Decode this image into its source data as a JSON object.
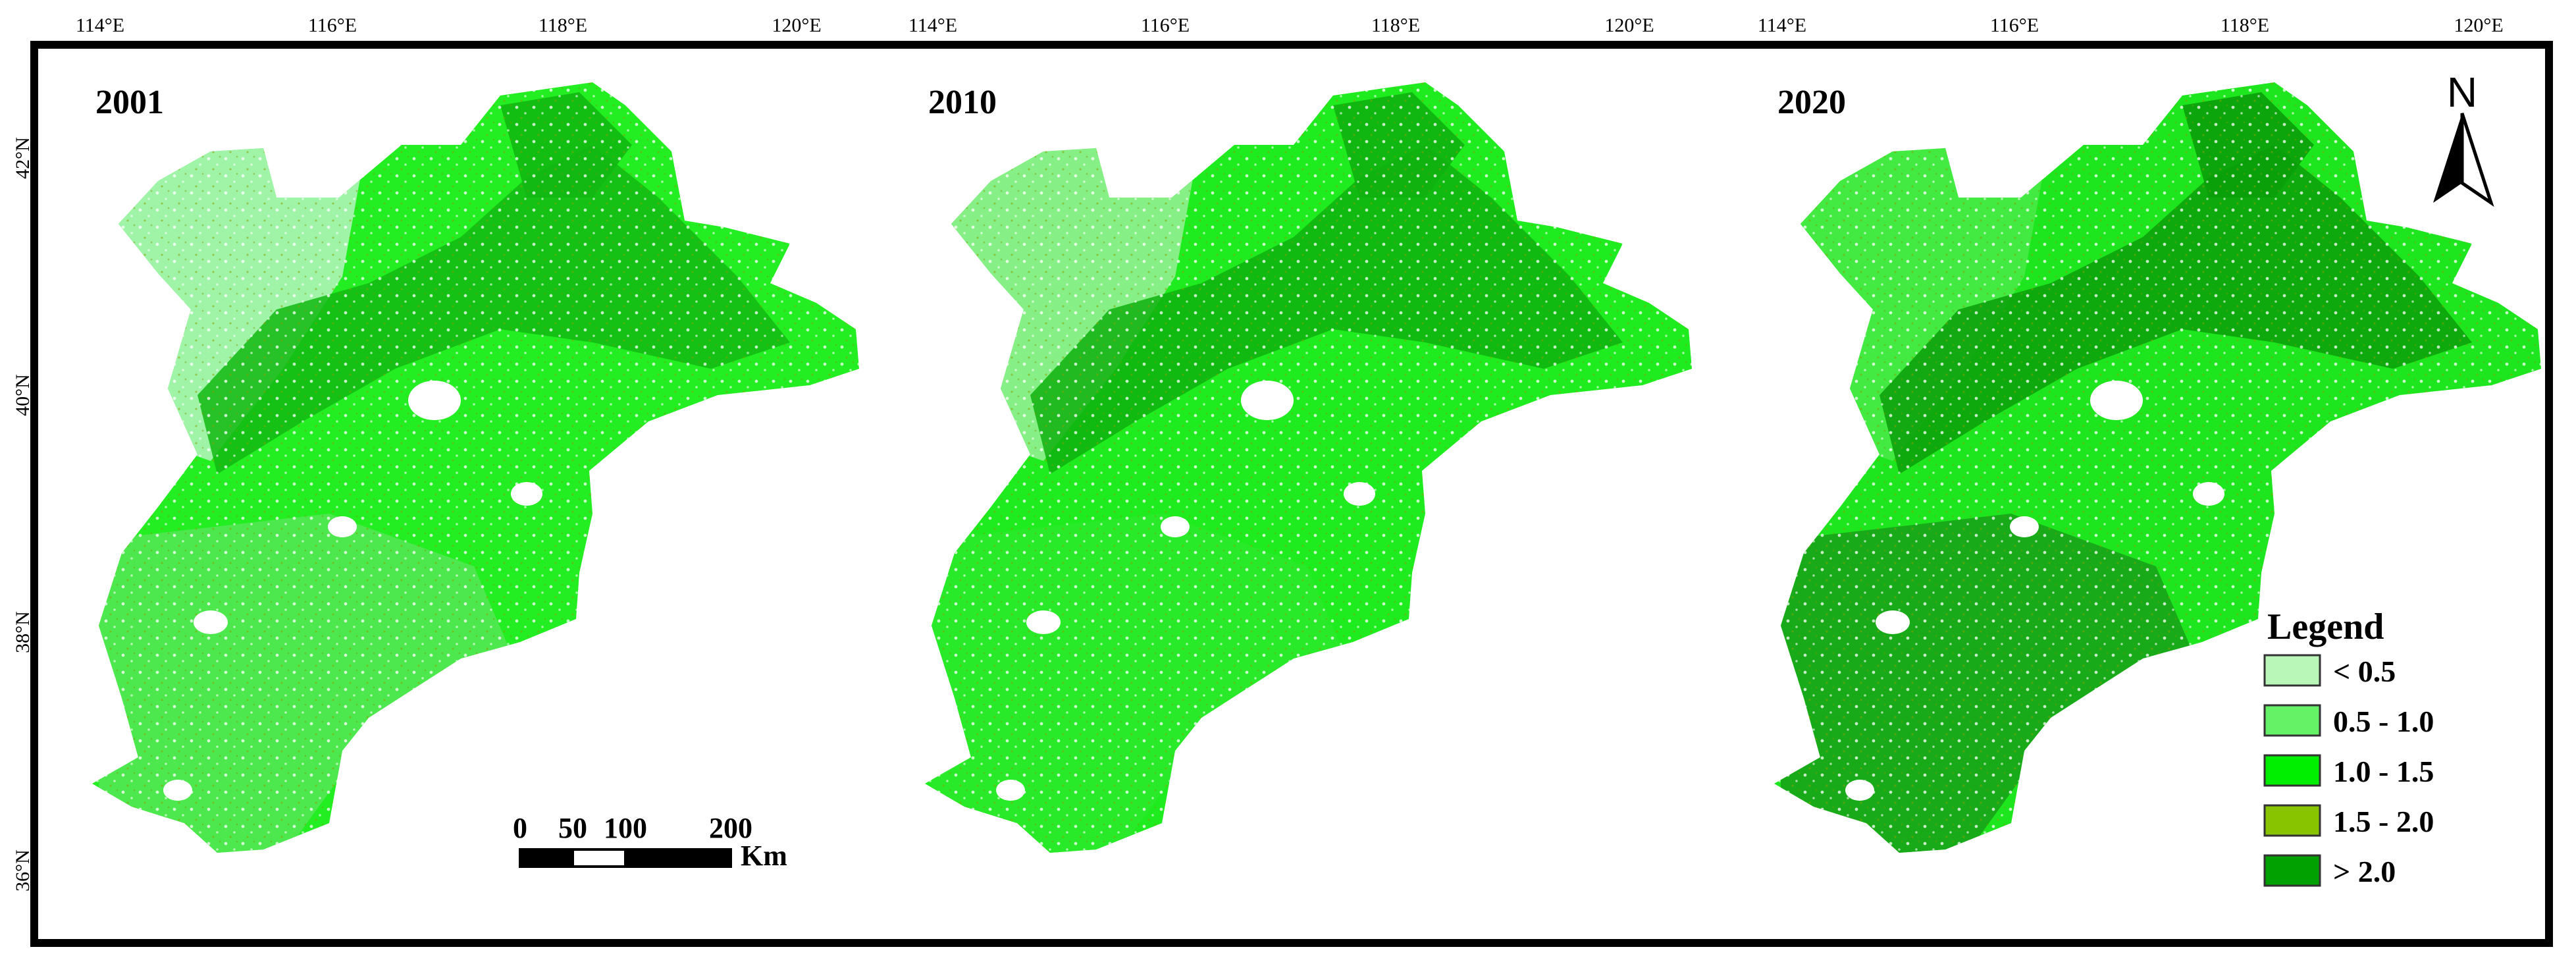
{
  "panels": [
    {
      "year": "2001",
      "lon_ticks": [
        "114°E",
        "116°E",
        "118°E",
        "120°E"
      ],
      "lat_ticks": [
        "36°N",
        "38°N",
        "40°N",
        "42°N"
      ],
      "fills": {
        "base": "#22ee22",
        "northwest": "#a8f3b0",
        "south": "#55e655",
        "mountain": "#12b812"
      }
    },
    {
      "year": "2010",
      "lon_ticks": [
        "114°E",
        "116°E",
        "118°E",
        "120°E"
      ],
      "lat_ticks": [],
      "fills": {
        "base": "#1fec1f",
        "northwest": "#8cf08c",
        "south": "#2bea2b",
        "mountain": "#0fb10f"
      }
    },
    {
      "year": "2020",
      "lon_ticks": [
        "114°E",
        "116°E",
        "118°E",
        "120°E"
      ],
      "lat_ticks": [],
      "fills": {
        "base": "#1ee61e",
        "northwest": "#44ea44",
        "south": "#179f17",
        "mountain": "#0a9e0a"
      }
    }
  ],
  "legend": {
    "title": "Legend",
    "items": [
      {
        "label": "< 0.5",
        "color": "#b8f7b8"
      },
      {
        "label": "0.5 - 1.0",
        "color": "#66f266"
      },
      {
        "label": "1.0 - 1.5",
        "color": "#00ee00"
      },
      {
        "label": "1.5 - 2.0",
        "color": "#88c400"
      },
      {
        "label": "> 2.0",
        "color": "#00a100"
      }
    ]
  },
  "scale_bar": {
    "ticks": [
      "0",
      "50",
      "100",
      "200"
    ],
    "unit": "Km"
  },
  "north_arrow": {
    "label": "N"
  }
}
